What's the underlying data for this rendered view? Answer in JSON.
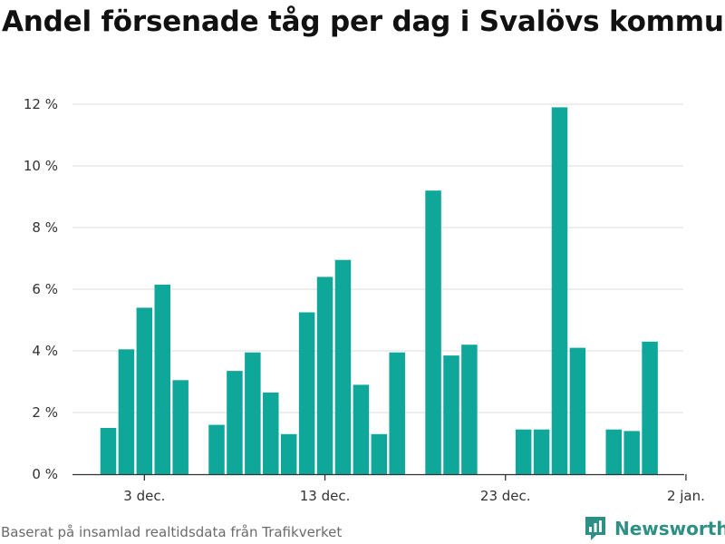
{
  "title": "Andel försenade tåg per dag i Svalövs kommun",
  "source": "Baserat på insamlad realtidsdata från Trafikverket",
  "brand": {
    "name": "Newsworthy",
    "icon": "newsworthy-logo-icon"
  },
  "colors": {
    "bar": "#0ea79a",
    "grid": "#dcdcdc",
    "axis": "#333333",
    "brand": "#2e8f84"
  },
  "chart_data": {
    "type": "bar",
    "title": "Andel försenade tåg per dag i Svalövs kommun",
    "xlabel": "",
    "ylabel": "",
    "x_tick_labels": [
      "3 dec.",
      "13 dec.",
      "23 dec.",
      "2 jan."
    ],
    "y_tick_labels": [
      "0 %",
      "2 %",
      "4 %",
      "6 %",
      "8 %",
      "10 %",
      "12 %"
    ],
    "ylim": [
      0,
      12
    ],
    "grid": true,
    "categories": [
      "1 dec.",
      "2 dec.",
      "3 dec.",
      "4 dec.",
      "5 dec.",
      "6 dec.",
      "7 dec.",
      "8 dec.",
      "9 dec.",
      "10 dec.",
      "11 dec.",
      "12 dec.",
      "13 dec.",
      "14 dec.",
      "15 dec.",
      "16 dec.",
      "17 dec.",
      "18 dec.",
      "19 dec.",
      "20 dec.",
      "21 dec.",
      "22 dec.",
      "23 dec.",
      "24 dec.",
      "25 dec.",
      "26 dec.",
      "27 dec.",
      "28 dec.",
      "29 dec.",
      "30 dec.",
      "31 dec.",
      "1 jan.",
      "2 jan."
    ],
    "values": [
      1.5,
      4.05,
      5.4,
      6.15,
      3.05,
      null,
      1.6,
      3.35,
      3.95,
      2.65,
      1.3,
      5.25,
      6.4,
      6.95,
      2.9,
      1.3,
      3.95,
      null,
      9.2,
      3.85,
      4.2,
      null,
      null,
      1.45,
      1.45,
      11.9,
      4.1,
      null,
      1.45,
      1.4,
      4.3,
      null,
      null
    ]
  }
}
